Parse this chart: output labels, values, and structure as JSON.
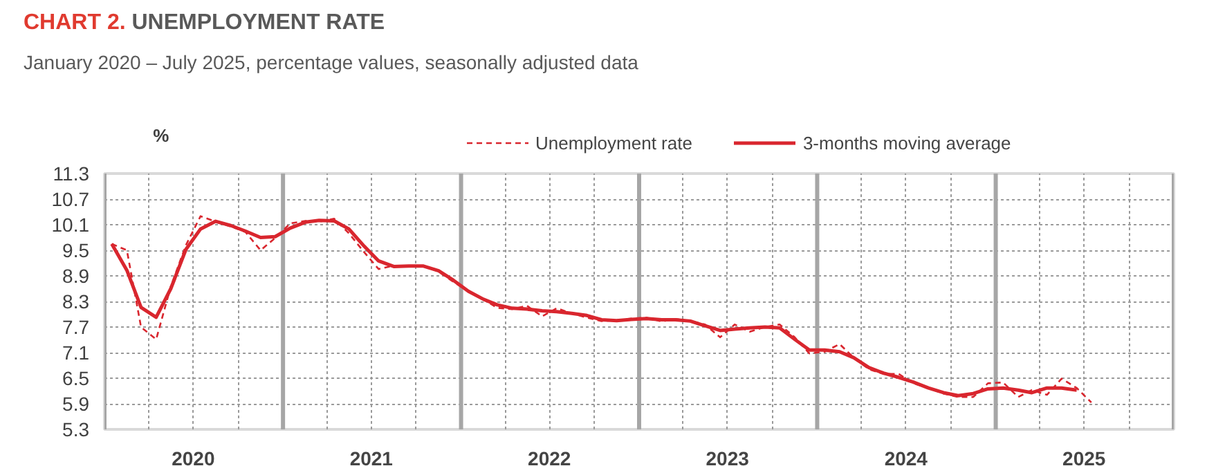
{
  "chart_data": {
    "type": "line",
    "title": "CHART 2. UNEMPLOYMENT RATE",
    "subtitle": "January 2020 – July 2025, percentage values, seasonally adjusted data",
    "ylabel": "%",
    "x": [
      "2020-01-16",
      "2020-02-16",
      "2020-03-16",
      "2020-04-16",
      "2020-05-16",
      "2020-06-16",
      "2020-07-16",
      "2020-08-16",
      "2020-09-16",
      "2020-10-16",
      "2020-11-16",
      "2020-12-16",
      "2021-01-16",
      "2021-02-16",
      "2021-03-16",
      "2021-04-16",
      "2021-05-16",
      "2021-06-16",
      "2021-07-16",
      "2021-08-16",
      "2021-09-16",
      "2021-10-16",
      "2021-11-16",
      "2021-12-16",
      "2022-01-16",
      "2022-02-16",
      "2022-03-16",
      "2022-04-16",
      "2022-05-16",
      "2022-06-16",
      "2022-07-16",
      "2022-08-16",
      "2022-09-16",
      "2022-10-16",
      "2022-11-16",
      "2022-12-16",
      "2023-01-16",
      "2023-02-16",
      "2023-03-16",
      "2023-04-16",
      "2023-05-16",
      "2023-06-16",
      "2023-07-16",
      "2023-08-16",
      "2023-09-16",
      "2023-10-16",
      "2023-11-16",
      "2023-12-16",
      "2024-01-16",
      "2024-02-16",
      "2024-03-16",
      "2024-04-16",
      "2024-05-16",
      "2024-06-16",
      "2024-07-16",
      "2024-08-16",
      "2024-09-16",
      "2024-10-16",
      "2024-11-16",
      "2024-12-16",
      "2025-01-16",
      "2025-02-16",
      "2025-03-16",
      "2025-04-16",
      "2025-05-16",
      "2025-06-16",
      "2025-07-16"
    ],
    "series": [
      {
        "name": "Unemployment rate",
        "color": "#d9262e",
        "line_style": "dashed",
        "values": [
          9.65,
          9.5,
          7.7,
          7.41,
          8.65,
          9.62,
          10.3,
          10.17,
          10.06,
          9.93,
          9.5,
          9.79,
          10.13,
          10.19,
          10.17,
          10.24,
          9.9,
          9.46,
          9.06,
          9.14,
          9.14,
          9.14,
          9.0,
          8.76,
          8.54,
          8.35,
          8.15,
          8.12,
          8.2,
          7.95,
          8.14,
          8.02,
          7.92,
          7.84,
          7.86,
          7.9,
          7.92,
          7.83,
          7.89,
          7.84,
          7.76,
          7.46,
          7.76,
          7.59,
          7.7,
          7.76,
          7.46,
          7.08,
          7.12,
          7.3,
          6.98,
          6.71,
          6.6,
          6.6,
          6.38,
          6.27,
          6.14,
          6.06,
          6.06,
          6.38,
          6.4,
          6.06,
          6.22,
          6.11,
          6.49,
          6.27,
          5.93
        ]
      },
      {
        "name": "3-months moving average",
        "color": "#d9262e",
        "line_style": "solid",
        "values": [
          9.65,
          9.03,
          8.16,
          7.93,
          8.6,
          9.52,
          10.0,
          10.18,
          10.08,
          9.95,
          9.8,
          9.82,
          10.02,
          10.16,
          10.2,
          10.19,
          10.0,
          9.6,
          9.25,
          9.12,
          9.13,
          9.13,
          9.02,
          8.8,
          8.54,
          8.35,
          8.22,
          8.14,
          8.12,
          8.08,
          8.06,
          8.02,
          7.97,
          7.87,
          7.85,
          7.88,
          7.9,
          7.87,
          7.87,
          7.84,
          7.73,
          7.62,
          7.65,
          7.68,
          7.7,
          7.68,
          7.41,
          7.16,
          7.16,
          7.12,
          6.98,
          6.75,
          6.62,
          6.52,
          6.41,
          6.27,
          6.16,
          6.09,
          6.14,
          6.25,
          6.27,
          6.22,
          6.16,
          6.27,
          6.27,
          6.22,
          null
        ]
      }
    ],
    "xlim": [
      "2020-01-01",
      "2026-01-01"
    ],
    "xticks": [
      {
        "value": "2020-01-01",
        "label": null
      },
      {
        "value": "2020-04-01",
        "label": null
      },
      {
        "value": "2020-07-01",
        "label": "2020"
      },
      {
        "value": "2020-10-01",
        "label": null
      },
      {
        "value": "2021-01-01",
        "label": null
      },
      {
        "value": "2021-04-01",
        "label": null
      },
      {
        "value": "2021-07-01",
        "label": "2021"
      },
      {
        "value": "2021-10-01",
        "label": null
      },
      {
        "value": "2022-01-01",
        "label": null
      },
      {
        "value": "2022-04-01",
        "label": null
      },
      {
        "value": "2022-07-01",
        "label": "2022"
      },
      {
        "value": "2022-10-01",
        "label": null
      },
      {
        "value": "2023-01-01",
        "label": null
      },
      {
        "value": "2023-04-01",
        "label": null
      },
      {
        "value": "2023-07-01",
        "label": "2023"
      },
      {
        "value": "2023-10-01",
        "label": null
      },
      {
        "value": "2024-01-01",
        "label": null
      },
      {
        "value": "2024-04-01",
        "label": null
      },
      {
        "value": "2024-07-01",
        "label": "2024"
      },
      {
        "value": "2024-10-01",
        "label": null
      },
      {
        "value": "2025-01-01",
        "label": null
      },
      {
        "value": "2025-04-01",
        "label": null
      },
      {
        "value": "2025-07-01",
        "label": "2025"
      },
      {
        "value": "2025-10-01",
        "label": null
      },
      {
        "value": "2026-01-01",
        "label": null
      }
    ],
    "ylim": [
      5.3,
      11.3
    ],
    "yticks": [
      5.3,
      5.9,
      6.5,
      7.1,
      7.7,
      8.3,
      8.9,
      9.5,
      10.1,
      10.7,
      11.3
    ],
    "grid": true,
    "legend": "top",
    "marker": "none"
  }
}
